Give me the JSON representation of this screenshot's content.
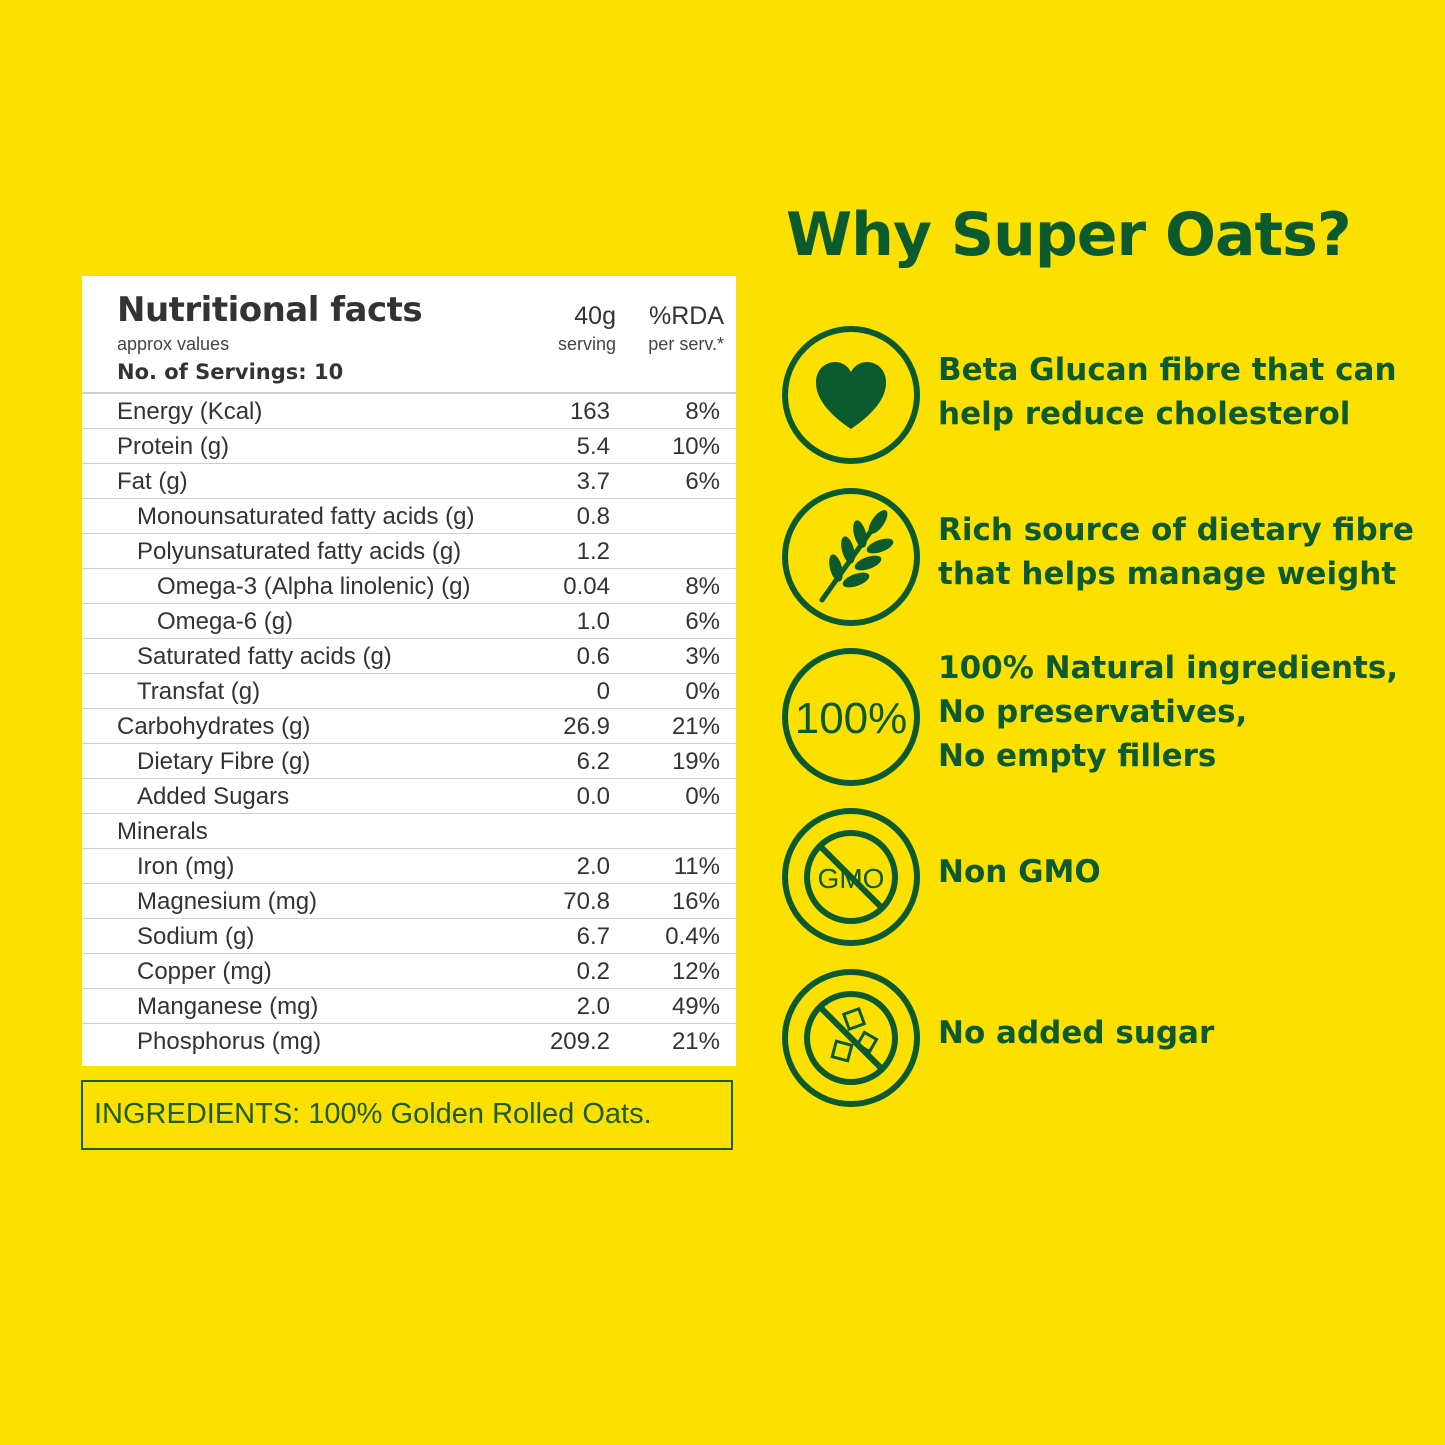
{
  "nutrition": {
    "title": "Nutritional facts",
    "approx": "approx values",
    "servings": "No. of Servings: 10",
    "col1_head": "40g",
    "col1_sub": "serving",
    "col2_head": "%RDA",
    "col2_sub": "per serv.*",
    "rows": [
      {
        "name": "Energy (Kcal)",
        "serving": "163",
        "rda": "8%"
      },
      {
        "name": "Protein (g)",
        "serving": "5.4",
        "rda": "10%"
      },
      {
        "name": "Fat (g)",
        "serving": "3.7",
        "rda": "6%"
      },
      {
        "name": "Monounsaturated fatty acids (g)",
        "serving": "0.8",
        "rda": ""
      },
      {
        "name": "Polyunsaturated fatty acids (g)",
        "serving": "1.2",
        "rda": ""
      },
      {
        "name": "Omega-3 (Alpha linolenic) (g)",
        "serving": "0.04",
        "rda": "8%"
      },
      {
        "name": "Omega-6 (g)",
        "serving": "1.0",
        "rda": "6%"
      },
      {
        "name": "Saturated fatty acids (g)",
        "serving": "0.6",
        "rda": "3%"
      },
      {
        "name": "Transfat (g)",
        "serving": "0",
        "rda": "0%"
      },
      {
        "name": "Carbohydrates (g)",
        "serving": "26.9",
        "rda": "21%"
      },
      {
        "name": "Dietary Fibre (g)",
        "serving": "6.2",
        "rda": "19%"
      },
      {
        "name": "Added Sugars",
        "serving": "0.0",
        "rda": "0%"
      },
      {
        "name": "Minerals",
        "serving": "",
        "rda": ""
      },
      {
        "name": "Iron (mg)",
        "serving": "2.0",
        "rda": "11%"
      },
      {
        "name": "Magnesium (mg)",
        "serving": "70.8",
        "rda": "16%"
      },
      {
        "name": "Sodium (g)",
        "serving": "6.7",
        "rda": "0.4%"
      },
      {
        "name": "Copper (mg)",
        "serving": "0.2",
        "rda": "12%"
      },
      {
        "name": "Manganese (mg)",
        "serving": "2.0",
        "rda": "49%"
      },
      {
        "name": "Phosphorus (mg)",
        "serving": "209.2",
        "rda": "21%"
      }
    ]
  },
  "ingredients": {
    "text": "INGREDIENTS: 100% Golden Rolled Oats."
  },
  "why": {
    "title": "Why Super Oats?",
    "benefits": [
      {
        "icon": "heart-icon",
        "lines": [
          "Beta Glucan fibre that can",
          "help reduce cholesterol"
        ]
      },
      {
        "icon": "wheat-icon",
        "lines": [
          "Rich source of dietary fibre",
          "that helps manage weight"
        ]
      },
      {
        "icon": "hundred-percent-icon",
        "icon_text": "100%",
        "lines": [
          "100% Natural ingredients,",
          "No preservatives,",
          "No empty fillers"
        ]
      },
      {
        "icon": "no-gmo-icon",
        "icon_text": "GMO",
        "lines": [
          "Non GMO"
        ]
      },
      {
        "icon": "no-sugar-icon",
        "lines": [
          "No added sugar"
        ]
      }
    ]
  },
  "colors": {
    "background": "#fce100",
    "brand_green": "#0b5a2e",
    "ingredients_green": "#1e5b2c"
  }
}
